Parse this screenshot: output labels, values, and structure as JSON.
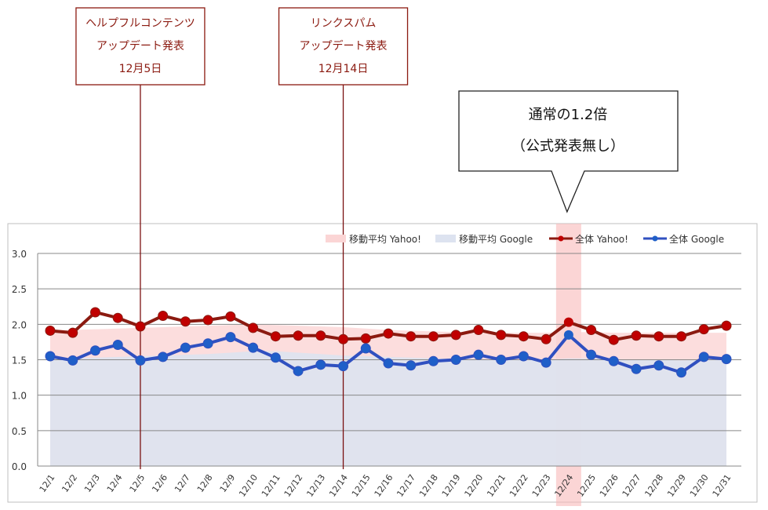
{
  "chart_data": {
    "type": "line",
    "categories": [
      "12/1",
      "12/2",
      "12/3",
      "12/4",
      "12/5",
      "12/6",
      "12/7",
      "12/8",
      "12/9",
      "12/10",
      "12/11",
      "12/12",
      "12/13",
      "12/14",
      "12/15",
      "12/16",
      "12/17",
      "12/18",
      "12/19",
      "12/20",
      "12/21",
      "12/22",
      "12/23",
      "12/24",
      "12/25",
      "12/26",
      "12/27",
      "12/28",
      "12/29",
      "12/30",
      "12/31"
    ],
    "ylim": [
      0,
      3.0
    ],
    "yticks": [
      "0.0",
      "0.5",
      "1.0",
      "1.5",
      "2.0",
      "2.5",
      "3.0"
    ],
    "grid": true,
    "legend_position": "top-right",
    "series": [
      {
        "name": "移動平均 Yahoo!",
        "kind": "area",
        "color": "#fbd5d5",
        "values": [
          1.92,
          1.92,
          1.93,
          1.94,
          1.95,
          1.96,
          1.97,
          1.98,
          1.99,
          2.0,
          1.99,
          1.98,
          1.97,
          1.96,
          1.94,
          1.92,
          1.91,
          1.9,
          1.89,
          1.89,
          1.88,
          1.88,
          1.88,
          1.89,
          1.89,
          1.88,
          1.88,
          1.88,
          1.88,
          1.88,
          1.88
        ]
      },
      {
        "name": "移動平均 Google",
        "kind": "area",
        "color": "#dde3f0",
        "values": [
          1.52,
          1.52,
          1.53,
          1.54,
          1.55,
          1.56,
          1.57,
          1.58,
          1.6,
          1.62,
          1.62,
          1.6,
          1.58,
          1.56,
          1.55,
          1.54,
          1.53,
          1.52,
          1.51,
          1.51,
          1.5,
          1.5,
          1.5,
          1.52,
          1.52,
          1.51,
          1.5,
          1.5,
          1.49,
          1.5,
          1.5
        ]
      },
      {
        "name": "全体 Yahoo!",
        "kind": "line",
        "color": "#8b1a10",
        "marker": "#c00000",
        "values": [
          1.91,
          1.88,
          2.17,
          2.09,
          1.97,
          2.12,
          2.04,
          2.06,
          2.11,
          1.95,
          1.83,
          1.84,
          1.84,
          1.79,
          1.8,
          1.87,
          1.83,
          1.83,
          1.85,
          1.92,
          1.85,
          1.83,
          1.79,
          2.03,
          1.92,
          1.78,
          1.84,
          1.83,
          1.83,
          1.93,
          1.98
        ]
      },
      {
        "name": "全体 Google",
        "kind": "line",
        "color": "#3050c0",
        "marker": "#1f5fc8",
        "values": [
          1.55,
          1.49,
          1.63,
          1.71,
          1.49,
          1.54,
          1.67,
          1.73,
          1.82,
          1.67,
          1.53,
          1.34,
          1.43,
          1.41,
          1.66,
          1.45,
          1.42,
          1.48,
          1.5,
          1.57,
          1.5,
          1.55,
          1.46,
          1.85,
          1.57,
          1.48,
          1.37,
          1.42,
          1.32,
          1.54,
          1.51
        ]
      }
    ],
    "highlight_category": "12/24",
    "annotations": [
      {
        "category": "12/5",
        "lines": [
          "ヘルプフルコンテンツ",
          "アップデート発表",
          "12月5日"
        ]
      },
      {
        "category": "12/14",
        "lines": [
          "リンクスパム",
          "アップデート発表",
          "12月14日"
        ]
      }
    ],
    "callout": {
      "category": "12/24",
      "lines": [
        "通常の1.2倍",
        "（公式発表無し）"
      ]
    }
  }
}
